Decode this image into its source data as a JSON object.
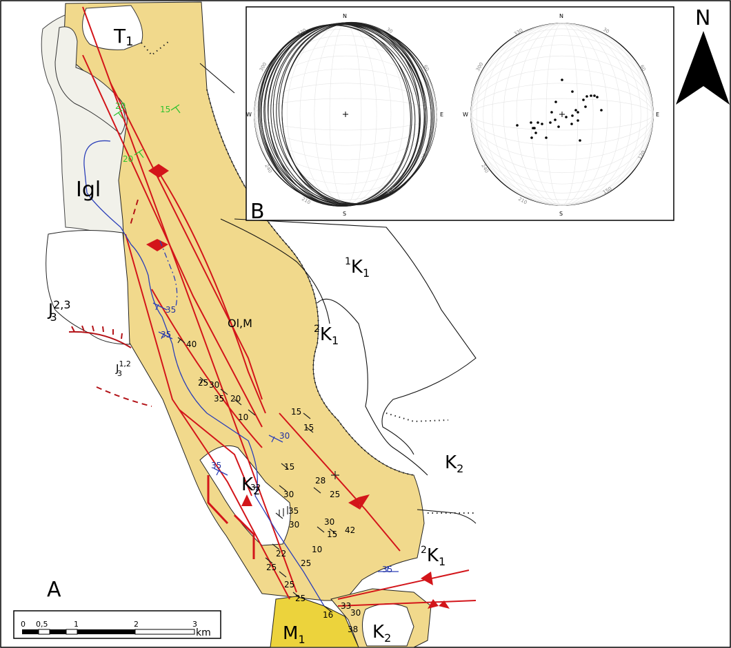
{
  "panel_labels": {
    "a": "A",
    "b": "B"
  },
  "north_arrow": {
    "label": "N"
  },
  "units": {
    "T1": {
      "base": "T",
      "sub": "1"
    },
    "igl": {
      "text": "Igl"
    },
    "j3_23": {
      "base": "J",
      "sup": "2,3",
      "sub": "3"
    },
    "j3_12": {
      "base": "J",
      "sup": "1,2",
      "sub": "3"
    },
    "ol_m": {
      "text": "Ol,M"
    },
    "k1_top": {
      "pre": "1",
      "base": "K",
      "sub": "1"
    },
    "k1_mid": {
      "pre": "2",
      "base": "K",
      "sub": "1"
    },
    "k2_right": {
      "base": "K",
      "sub": "2"
    },
    "k2_center": {
      "base": "K",
      "sub": "2"
    },
    "k1_bottom": {
      "pre": "2",
      "base": "K",
      "sub": "1"
    },
    "m1": {
      "base": "M",
      "sub": "1"
    },
    "k2_bottom": {
      "base": "K",
      "sub": "2"
    }
  },
  "dip_readings": {
    "green": [
      "20",
      "15",
      "20"
    ],
    "blue": [
      "35",
      "35",
      "30",
      "35",
      "35"
    ],
    "black": [
      "40",
      "25",
      "30",
      "35",
      "20",
      "10",
      "15",
      "15",
      "32",
      "15",
      "28",
      "25",
      "30",
      "35",
      "30",
      "15",
      "42",
      "30",
      "10",
      "25",
      "25",
      "22",
      "25",
      "16",
      "33",
      "30",
      "38",
      "25"
    ]
  },
  "stereonet_left": {
    "cardinals": {
      "n": "N",
      "e": "E",
      "s": "S",
      "w": "W"
    },
    "azimuths": [
      "330",
      "30",
      "300",
      "60",
      "240",
      "120",
      "210",
      "150"
    ]
  },
  "stereonet_right": {
    "cardinals": {
      "n": "N",
      "e": "E",
      "s": "S",
      "w": "W"
    },
    "azimuths": [
      "330",
      "30",
      "300",
      "60",
      "240",
      "120",
      "210",
      "150"
    ]
  },
  "scale_bar": {
    "ticks": [
      "0",
      "0,5",
      "1",
      "2",
      "3"
    ],
    "unit": "km"
  },
  "colors": {
    "formation": "#f1d98c",
    "molasse": "#ecd33c",
    "igl": "#f1f1ea",
    "fault": "#d3151a",
    "river": "#2b3fb8"
  }
}
